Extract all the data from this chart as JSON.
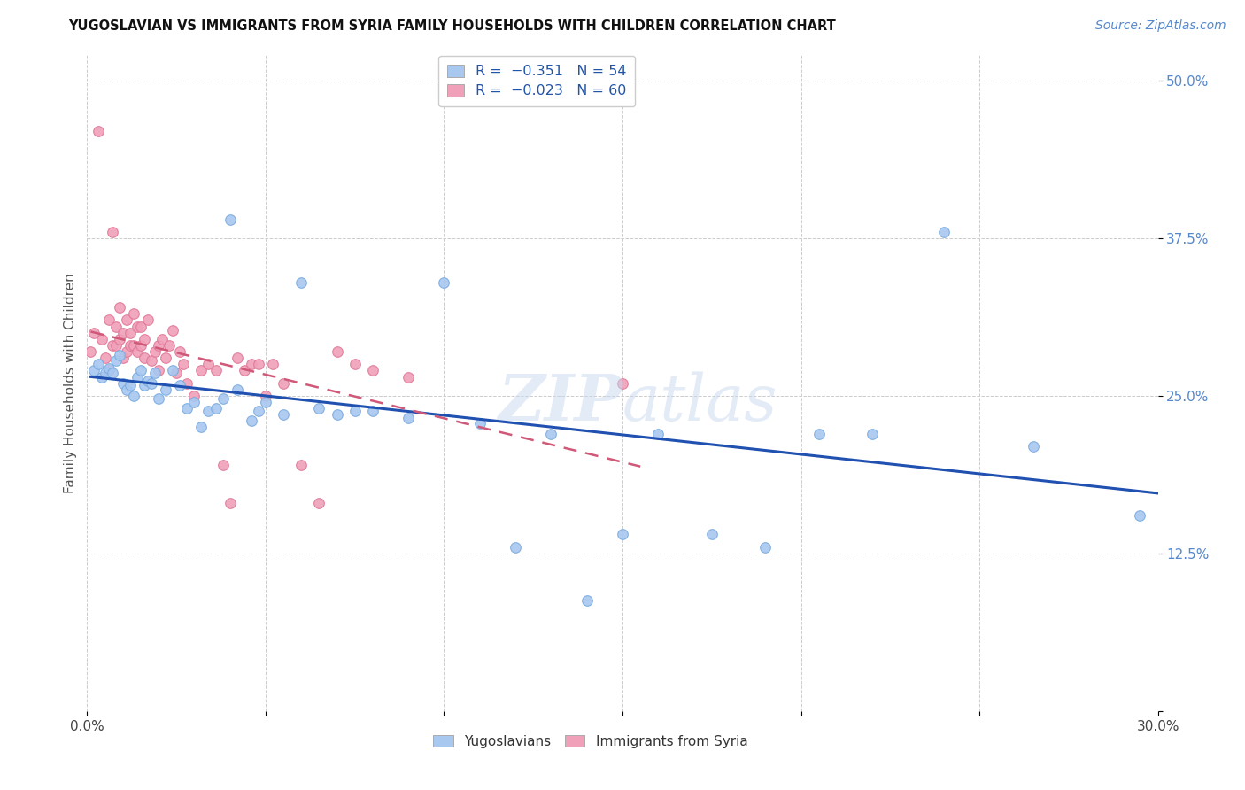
{
  "title": "YUGOSLAVIAN VS IMMIGRANTS FROM SYRIA FAMILY HOUSEHOLDS WITH CHILDREN CORRELATION CHART",
  "source": "Source: ZipAtlas.com",
  "ylabel": "Family Households with Children",
  "xlim": [
    0.0,
    0.3
  ],
  "ylim": [
    0.0,
    0.52
  ],
  "xticks": [
    0.0,
    0.05,
    0.1,
    0.15,
    0.2,
    0.25,
    0.3
  ],
  "xticklabels": [
    "0.0%",
    "",
    "",
    "",
    "",
    "",
    "30.0%"
  ],
  "yticks": [
    0.0,
    0.125,
    0.25,
    0.375,
    0.5
  ],
  "yticklabels": [
    "",
    "12.5%",
    "25.0%",
    "37.5%",
    "50.0%"
  ],
  "grid_color": "#cccccc",
  "background_color": "#ffffff",
  "blue_color": "#a8c8f0",
  "pink_color": "#f0a0b8",
  "blue_edge_color": "#7aabdf",
  "pink_edge_color": "#e07898",
  "blue_line_color": "#2050b0",
  "pink_line_color": "#d05878",
  "marker_size": 70,
  "blue_scatter_x": [
    0.002,
    0.003,
    0.004,
    0.005,
    0.006,
    0.007,
    0.008,
    0.009,
    0.01,
    0.011,
    0.012,
    0.013,
    0.014,
    0.015,
    0.016,
    0.017,
    0.018,
    0.019,
    0.02,
    0.022,
    0.024,
    0.026,
    0.028,
    0.03,
    0.032,
    0.034,
    0.036,
    0.038,
    0.04,
    0.042,
    0.046,
    0.048,
    0.05,
    0.055,
    0.06,
    0.065,
    0.07,
    0.075,
    0.08,
    0.09,
    0.1,
    0.11,
    0.12,
    0.13,
    0.14,
    0.15,
    0.16,
    0.175,
    0.19,
    0.205,
    0.22,
    0.24,
    0.265,
    0.295
  ],
  "blue_scatter_y": [
    0.27,
    0.275,
    0.265,
    0.268,
    0.272,
    0.268,
    0.278,
    0.282,
    0.26,
    0.255,
    0.258,
    0.25,
    0.265,
    0.27,
    0.258,
    0.262,
    0.26,
    0.268,
    0.248,
    0.255,
    0.27,
    0.258,
    0.24,
    0.245,
    0.225,
    0.238,
    0.24,
    0.248,
    0.39,
    0.255,
    0.23,
    0.238,
    0.245,
    0.235,
    0.34,
    0.24,
    0.235,
    0.238,
    0.238,
    0.232,
    0.34,
    0.228,
    0.13,
    0.22,
    0.088,
    0.14,
    0.22,
    0.14,
    0.13,
    0.22,
    0.22,
    0.38,
    0.21,
    0.155
  ],
  "pink_scatter_x": [
    0.001,
    0.002,
    0.003,
    0.004,
    0.005,
    0.006,
    0.006,
    0.007,
    0.007,
    0.008,
    0.008,
    0.009,
    0.009,
    0.01,
    0.01,
    0.011,
    0.011,
    0.012,
    0.012,
    0.013,
    0.013,
    0.014,
    0.014,
    0.015,
    0.015,
    0.016,
    0.016,
    0.017,
    0.018,
    0.019,
    0.02,
    0.02,
    0.021,
    0.022,
    0.023,
    0.024,
    0.025,
    0.026,
    0.027,
    0.028,
    0.03,
    0.032,
    0.034,
    0.036,
    0.038,
    0.04,
    0.042,
    0.044,
    0.046,
    0.048,
    0.05,
    0.052,
    0.055,
    0.06,
    0.065,
    0.07,
    0.075,
    0.08,
    0.09,
    0.15
  ],
  "pink_scatter_y": [
    0.285,
    0.3,
    0.46,
    0.295,
    0.28,
    0.27,
    0.31,
    0.29,
    0.38,
    0.29,
    0.305,
    0.295,
    0.32,
    0.28,
    0.3,
    0.285,
    0.31,
    0.29,
    0.3,
    0.315,
    0.29,
    0.285,
    0.305,
    0.29,
    0.305,
    0.28,
    0.295,
    0.31,
    0.278,
    0.285,
    0.29,
    0.27,
    0.295,
    0.28,
    0.29,
    0.302,
    0.268,
    0.285,
    0.275,
    0.26,
    0.25,
    0.27,
    0.275,
    0.27,
    0.195,
    0.165,
    0.28,
    0.27,
    0.275,
    0.275,
    0.25,
    0.275,
    0.26,
    0.195,
    0.165,
    0.285,
    0.275,
    0.27,
    0.265,
    0.26
  ]
}
